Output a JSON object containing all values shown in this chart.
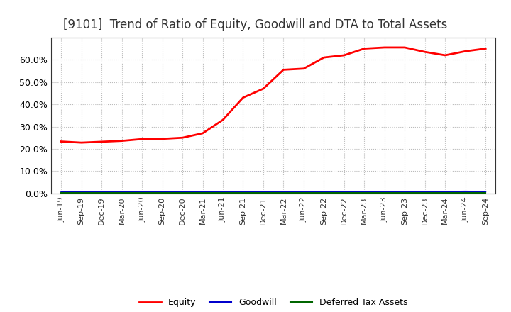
{
  "title": "[9101]  Trend of Ratio of Equity, Goodwill and DTA to Total Assets",
  "x_labels": [
    "Jun-19",
    "Sep-19",
    "Dec-19",
    "Mar-20",
    "Jun-20",
    "Sep-20",
    "Dec-20",
    "Mar-21",
    "Jun-21",
    "Sep-21",
    "Dec-21",
    "Mar-22",
    "Jun-22",
    "Sep-22",
    "Dec-22",
    "Mar-23",
    "Jun-23",
    "Sep-23",
    "Dec-23",
    "Mar-24",
    "Jun-24",
    "Sep-24"
  ],
  "equity": [
    0.233,
    0.228,
    0.232,
    0.236,
    0.244,
    0.245,
    0.25,
    0.27,
    0.33,
    0.43,
    0.47,
    0.555,
    0.56,
    0.61,
    0.62,
    0.65,
    0.655,
    0.655,
    0.635,
    0.62,
    0.638,
    0.65
  ],
  "goodwill": [
    0.008,
    0.008,
    0.008,
    0.008,
    0.008,
    0.008,
    0.008,
    0.008,
    0.008,
    0.008,
    0.008,
    0.008,
    0.008,
    0.008,
    0.008,
    0.008,
    0.008,
    0.008,
    0.008,
    0.008,
    0.009,
    0.008
  ],
  "dta": [
    0.003,
    0.003,
    0.003,
    0.003,
    0.003,
    0.003,
    0.003,
    0.003,
    0.003,
    0.003,
    0.003,
    0.003,
    0.003,
    0.003,
    0.003,
    0.003,
    0.003,
    0.003,
    0.003,
    0.003,
    0.003,
    0.003
  ],
  "equity_color": "#FF0000",
  "goodwill_color": "#0000CC",
  "dta_color": "#006600",
  "ylim": [
    0.0,
    0.7
  ],
  "yticks": [
    0.0,
    0.1,
    0.2,
    0.3,
    0.4,
    0.5,
    0.6
  ],
  "background_color": "#FFFFFF",
  "plot_bg_color": "#FFFFFF",
  "grid_color": "#BBBBBB",
  "title_fontsize": 12,
  "legend_labels": [
    "Equity",
    "Goodwill",
    "Deferred Tax Assets"
  ]
}
